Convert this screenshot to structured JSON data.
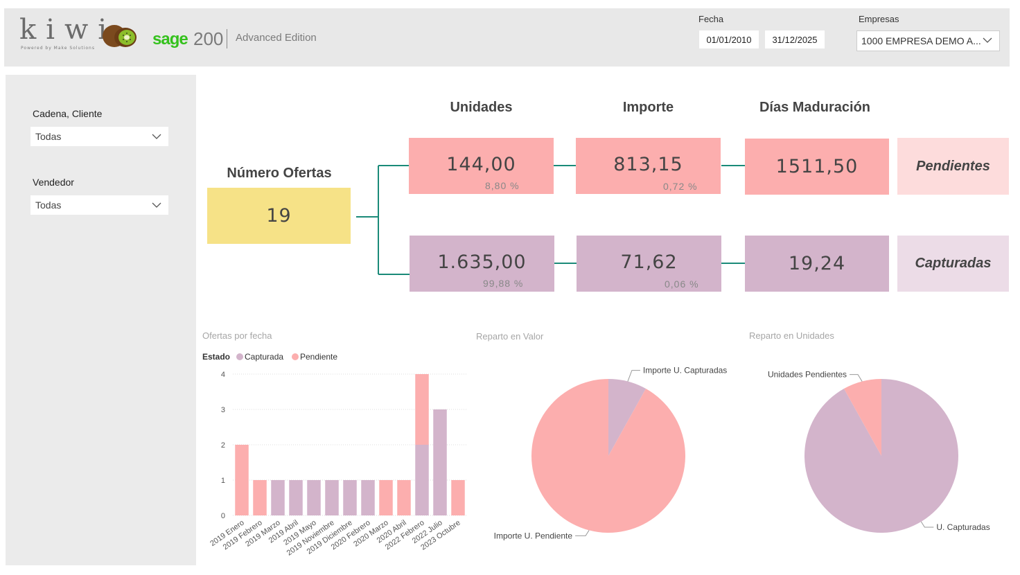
{
  "header": {
    "logo_text": "kiwi",
    "logo_subtitle": "Powered by Make Solutions",
    "sage_brand": "sage",
    "sage_version": "200",
    "edition": "Advanced Edition",
    "fecha_label": "Fecha",
    "date_from": "01/01/2010",
    "date_to": "31/12/2025",
    "empresas_label": "Empresas",
    "empresas_value": "1000 EMPRESA DEMO A..."
  },
  "filters": {
    "cadena_label": "Cadena, Cliente",
    "cadena_value": "Todas",
    "vendedor_label": "Vendedor",
    "vendedor_value": "Todas"
  },
  "kpis": {
    "numero_ofertas_label": "Número Ofertas",
    "numero_ofertas_value": "19",
    "col_unidades": "Unidades",
    "col_importe": "Importe",
    "col_dias": "Días Maduración",
    "pendientes": {
      "label": "Pendientes",
      "unidades": "144,00",
      "unidades_pct": "8,80 %",
      "importe": "813,15",
      "importe_pct": "0,72 %",
      "dias": "1511,50"
    },
    "capturadas": {
      "label": "Capturadas",
      "unidades": "1.635,00",
      "unidades_pct": "99,88 %",
      "importe": "71,62",
      "importe_pct": "0,06 %",
      "dias": "19,24"
    }
  },
  "colors": {
    "pendiente": "#fcaeae",
    "capturada": "#d3b4cb",
    "ofertas": "#f6e287",
    "connector": "#1a8a78"
  },
  "chart_data": [
    {
      "type": "bar",
      "stacked": true,
      "title": "Ofertas por fecha",
      "legend_title": "Estado",
      "legend_position": "top-left",
      "categories": [
        "2019 Enero",
        "2019 Febrero",
        "2019 Marzo",
        "2019 Abril",
        "2019 Mayo",
        "2019 Noviembre",
        "2019 Diciembre",
        "2020 Febrero",
        "2020 Marzo",
        "2020 Abril",
        "2022 Febrero",
        "2022 Julio",
        "2023 Octubre"
      ],
      "series": [
        {
          "name": "Capturada",
          "values": [
            0,
            0,
            1,
            1,
            1,
            1,
            1,
            1,
            0,
            0,
            2,
            3,
            0
          ]
        },
        {
          "name": "Pendiente",
          "values": [
            2,
            1,
            0,
            0,
            0,
            0,
            0,
            0,
            1,
            1,
            2,
            0,
            1
          ]
        }
      ],
      "ylim": [
        0,
        4
      ],
      "yticks": [
        0,
        1,
        2,
        3,
        4
      ],
      "grid": true
    },
    {
      "type": "pie",
      "title": "Reparto en Valor",
      "labels": [
        "Importe U. Pendiente",
        "Importe U. Capturadas"
      ],
      "values": [
        813.15,
        71.62
      ]
    },
    {
      "type": "pie",
      "title": "Reparto en Unidades",
      "labels": [
        "Unidades Pendientes",
        "U. Capturadas"
      ],
      "values": [
        144.0,
        1635.0
      ]
    }
  ]
}
